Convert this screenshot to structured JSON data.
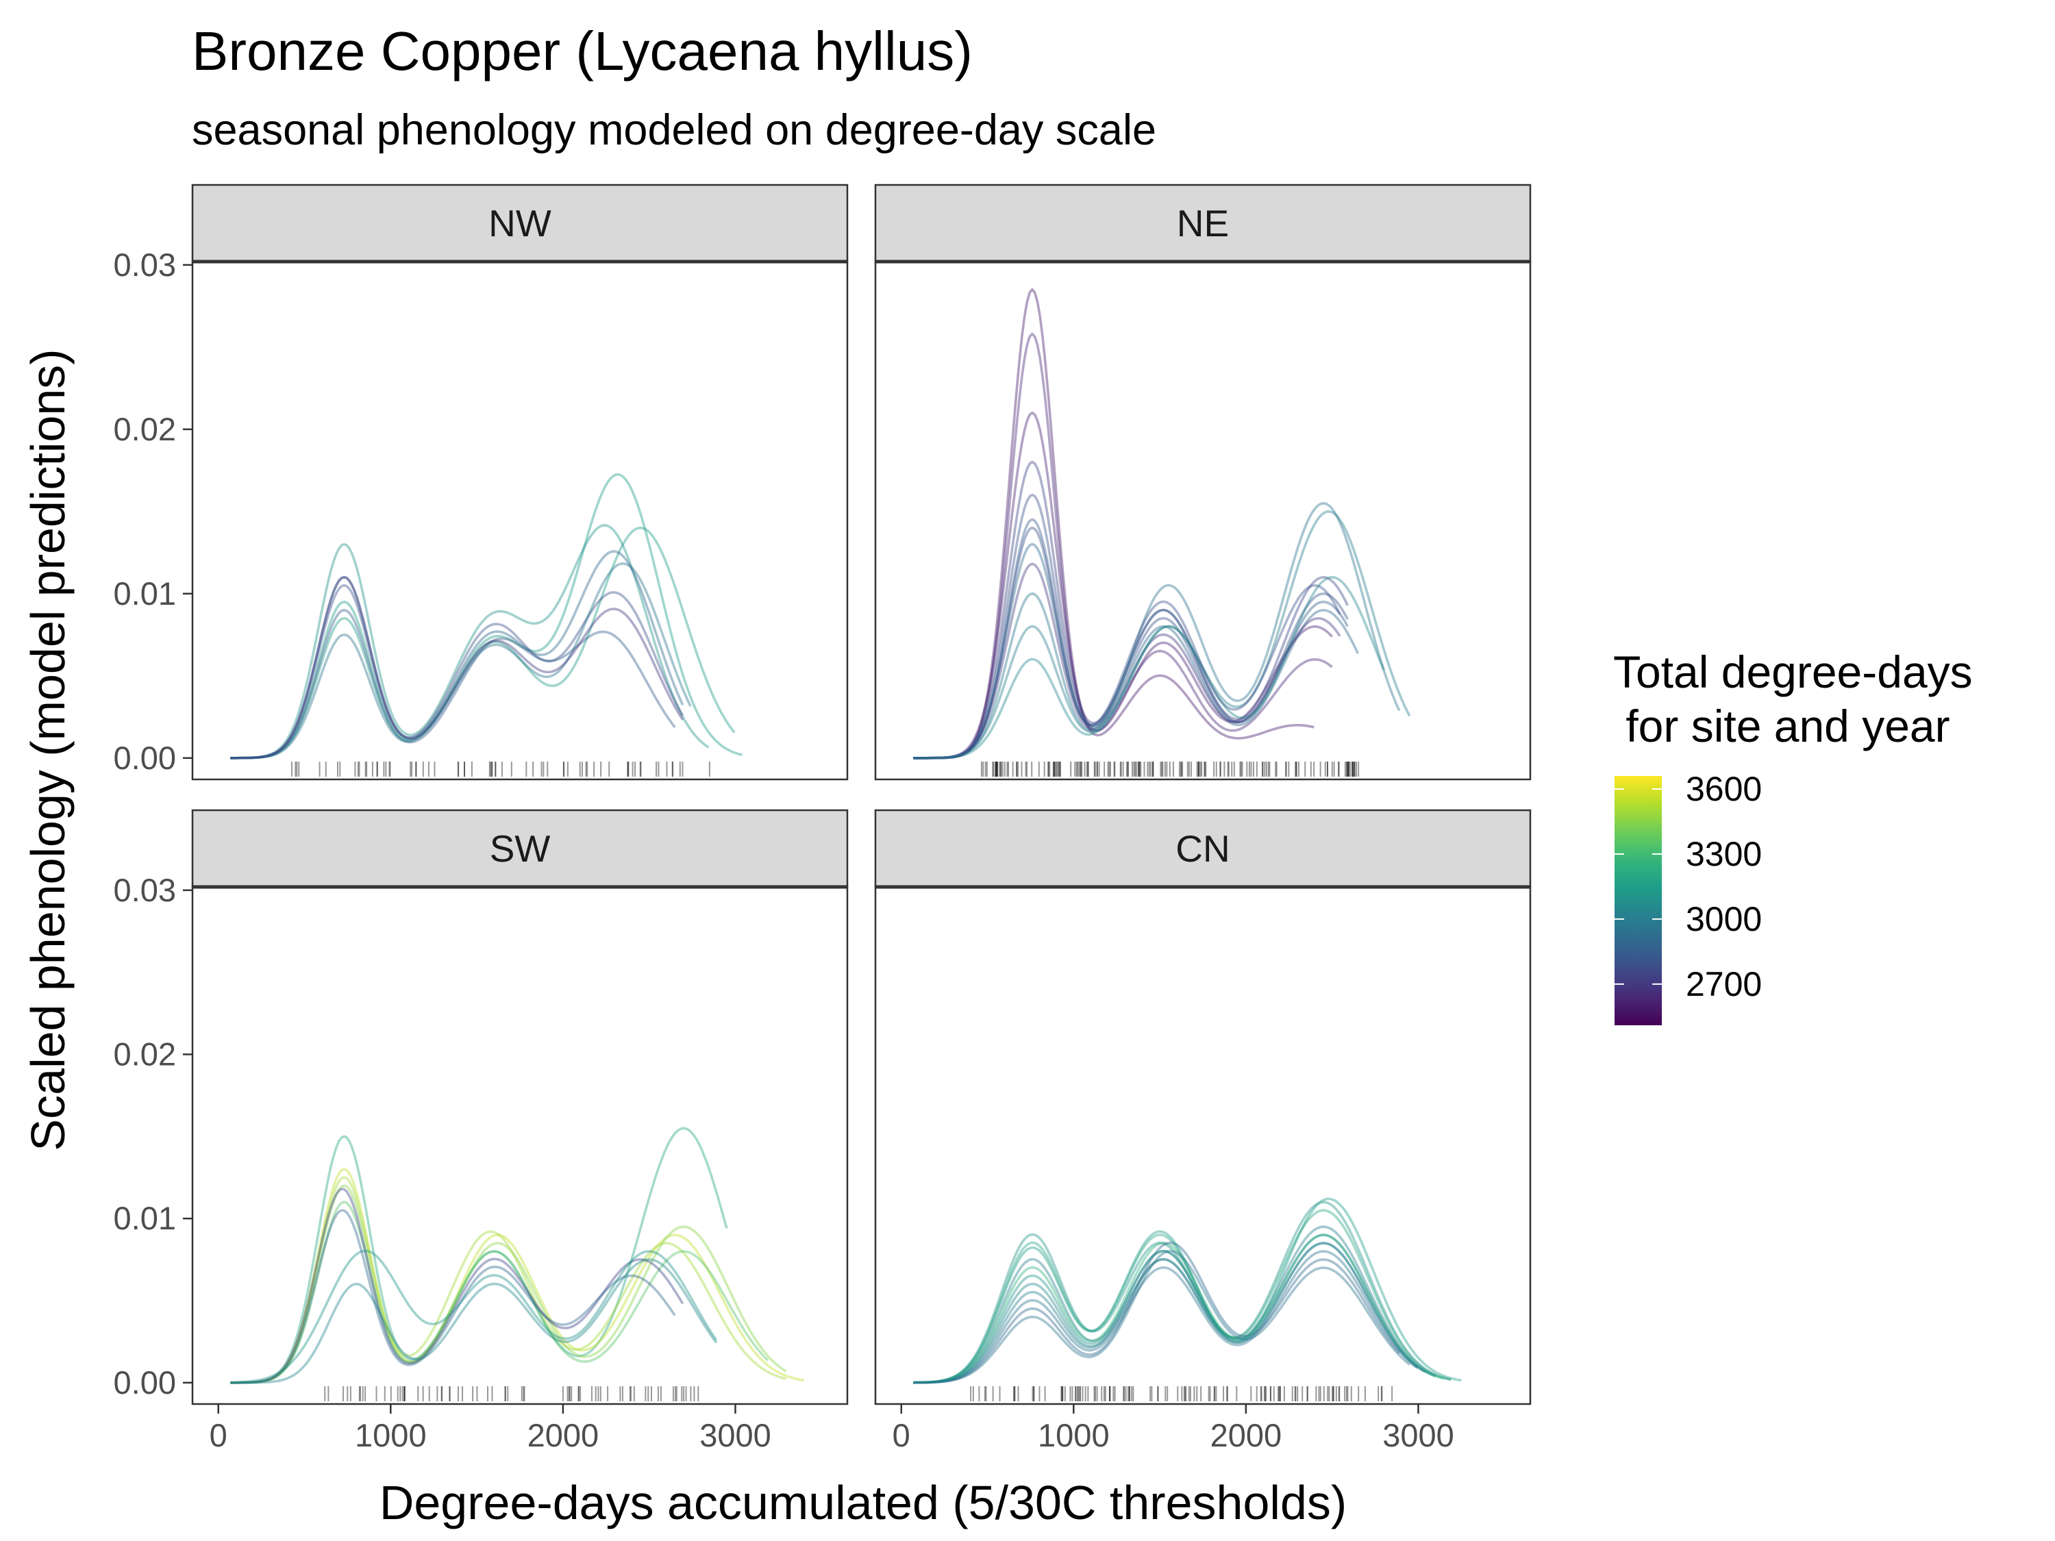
{
  "chart_data": {
    "type": "line",
    "title": "Bronze Copper (Lycaena hyllus)",
    "subtitle": "seasonal phenology modeled on degree-day scale",
    "xlabel": "Degree-days accumulated (5/30C thresholds)",
    "ylabel": "Scaled phenology (model predictions)",
    "xlim": [
      -150,
      3650
    ],
    "ylim": [
      -0.0013,
      0.0302
    ],
    "x_ticks": [
      0,
      1000,
      2000,
      3000
    ],
    "x_tick_labels": [
      "0",
      "1000",
      "2000",
      "3000"
    ],
    "y_ticks": [
      0,
      0.01,
      0.02,
      0.03
    ],
    "y_tick_labels": [
      "0.00",
      "0.01",
      "0.02",
      "0.03"
    ],
    "grid": false,
    "legend": {
      "title_lines": [
        "Total degree-days",
        " for site and year"
      ],
      "position": "right",
      "colormap": "viridis",
      "range": [
        2510,
        3660
      ],
      "ticks": [
        2700,
        3000,
        3300,
        3600
      ],
      "tick_labels": [
        "2700",
        "3000",
        "3300",
        "3600"
      ]
    },
    "panels": [
      {
        "label": "NW",
        "rug_range": [
          390,
          2900
        ],
        "rug_count": 70,
        "series": [
          {
            "color_value": 3150,
            "x_end": 3050,
            "peaks": [
              [
                730,
                0.0095,
                150
              ],
              [
                1600,
                0.0072,
                230
              ],
              [
                2320,
                0.0172,
                240
              ]
            ]
          },
          {
            "color_value": 3150,
            "x_end": 3000,
            "peaks": [
              [
                730,
                0.0085,
                150
              ],
              [
                1600,
                0.007,
                230
              ],
              [
                2450,
                0.014,
                260
              ]
            ]
          },
          {
            "color_value": 3100,
            "x_end": 2850,
            "peaks": [
              [
                730,
                0.013,
                150
              ],
              [
                1600,
                0.0085,
                230
              ],
              [
                2250,
                0.014,
                240
              ]
            ]
          },
          {
            "color_value": 2900,
            "x_end": 2700,
            "peaks": [
              [
                730,
                0.011,
                150
              ],
              [
                1600,
                0.0075,
                230
              ],
              [
                2300,
                0.0125,
                240
              ]
            ]
          },
          {
            "color_value": 2800,
            "x_end": 2700,
            "peaks": [
              [
                730,
                0.0105,
                150
              ],
              [
                1600,
                0.008,
                230
              ],
              [
                2300,
                0.01,
                240
              ]
            ]
          },
          {
            "color_value": 2850,
            "x_end": 2650,
            "peaks": [
              [
                730,
                0.009,
                150
              ],
              [
                1620,
                0.007,
                230
              ],
              [
                2250,
                0.0075,
                240
              ]
            ]
          },
          {
            "color_value": 2950,
            "x_end": 2750,
            "peaks": [
              [
                730,
                0.0075,
                150
              ],
              [
                1600,
                0.0068,
                230
              ],
              [
                2350,
                0.0118,
                240
              ]
            ]
          },
          {
            "color_value": 2700,
            "x_end": 2700,
            "peaks": [
              [
                730,
                0.011,
                150
              ],
              [
                1600,
                0.007,
                230
              ],
              [
                2300,
                0.009,
                240
              ]
            ]
          }
        ]
      },
      {
        "label": "NE",
        "rug_range": [
          460,
          2700
        ],
        "rug_count": 170,
        "series": [
          {
            "color_value": 2600,
            "x_end": 2400,
            "peaks": [
              [
                760,
                0.0285,
                130
              ],
              [
                1500,
                0.005,
                200
              ],
              [
                2300,
                0.002,
                260
              ]
            ]
          },
          {
            "color_value": 2650,
            "x_end": 2500,
            "peaks": [
              [
                760,
                0.0258,
                130
              ],
              [
                1500,
                0.0065,
                200
              ],
              [
                2400,
                0.006,
                250
              ]
            ]
          },
          {
            "color_value": 2620,
            "x_end": 2500,
            "peaks": [
              [
                760,
                0.021,
                140
              ],
              [
                1520,
                0.007,
                200
              ],
              [
                2400,
                0.008,
                250
              ]
            ]
          },
          {
            "color_value": 2750,
            "x_end": 2600,
            "peaks": [
              [
                760,
                0.018,
                140
              ],
              [
                1520,
                0.009,
                210
              ],
              [
                2450,
                0.011,
                240
              ]
            ]
          },
          {
            "color_value": 2800,
            "x_end": 2600,
            "peaks": [
              [
                760,
                0.016,
                140
              ],
              [
                1520,
                0.0085,
                210
              ],
              [
                2450,
                0.01,
                240
              ]
            ]
          },
          {
            "color_value": 2850,
            "x_end": 2600,
            "peaks": [
              [
                760,
                0.0145,
                140
              ],
              [
                1520,
                0.009,
                210
              ],
              [
                2450,
                0.0095,
                240
              ]
            ]
          },
          {
            "color_value": 2900,
            "x_end": 2650,
            "peaks": [
              [
                760,
                0.013,
                145
              ],
              [
                1520,
                0.008,
                210
              ],
              [
                2450,
                0.009,
                240
              ]
            ]
          },
          {
            "color_value": 2700,
            "x_end": 2550,
            "peaks": [
              [
                760,
                0.0118,
                145
              ],
              [
                1520,
                0.0075,
                210
              ],
              [
                2420,
                0.0085,
                240
              ]
            ]
          },
          {
            "color_value": 2950,
            "x_end": 2900,
            "peaks": [
              [
                760,
                0.01,
                145
              ],
              [
                1550,
                0.0105,
                210
              ],
              [
                2450,
                0.0155,
                240
              ]
            ]
          },
          {
            "color_value": 3000,
            "x_end": 2950,
            "peaks": [
              [
                760,
                0.008,
                150
              ],
              [
                1550,
                0.008,
                220
              ],
              [
                2480,
                0.015,
                250
              ]
            ]
          },
          {
            "color_value": 3050,
            "x_end": 2800,
            "peaks": [
              [
                760,
                0.006,
                150
              ],
              [
                1550,
                0.008,
                220
              ],
              [
                2500,
                0.011,
                250
              ]
            ]
          },
          {
            "color_value": 2800,
            "x_end": 2550,
            "peaks": [
              [
                760,
                0.014,
                140
              ],
              [
                1520,
                0.0095,
                210
              ],
              [
                2400,
                0.0105,
                240
              ]
            ]
          }
        ]
      },
      {
        "label": "SW",
        "rug_range": [
          600,
          2840
        ],
        "rug_count": 70,
        "series": [
          {
            "color_value": 3200,
            "x_end": 2950,
            "peaks": [
              [
                730,
                0.015,
                150
              ],
              [
                1600,
                0.008,
                230
              ],
              [
                2700,
                0.0155,
                250
              ]
            ]
          },
          {
            "color_value": 3550,
            "x_end": 3400,
            "peaks": [
              [
                730,
                0.013,
                150
              ],
              [
                1620,
                0.009,
                230
              ],
              [
                2650,
                0.009,
                260
              ]
            ]
          },
          {
            "color_value": 3450,
            "x_end": 3300,
            "peaks": [
              [
                730,
                0.012,
                150
              ],
              [
                1620,
                0.0085,
                230
              ],
              [
                2700,
                0.0095,
                260
              ]
            ]
          },
          {
            "color_value": 3500,
            "x_end": 3300,
            "peaks": [
              [
                730,
                0.0125,
                150
              ],
              [
                1580,
                0.0092,
                230
              ],
              [
                2600,
                0.0085,
                260
              ]
            ]
          },
          {
            "color_value": 3350,
            "x_end": 3200,
            "peaks": [
              [
                730,
                0.011,
                150
              ],
              [
                1600,
                0.008,
                230
              ],
              [
                2700,
                0.008,
                260
              ]
            ]
          },
          {
            "color_value": 2750,
            "x_end": 2700,
            "peaks": [
              [
                720,
                0.0118,
                150
              ],
              [
                1600,
                0.0075,
                230
              ],
              [
                2450,
                0.0075,
                260
              ]
            ]
          },
          {
            "color_value": 2900,
            "x_end": 2650,
            "peaks": [
              [
                720,
                0.0105,
                150
              ],
              [
                1600,
                0.007,
                230
              ],
              [
                2400,
                0.0065,
                260
              ]
            ]
          },
          {
            "color_value": 3100,
            "x_end": 2900,
            "peaks": [
              [
                850,
                0.008,
                220
              ],
              [
                1600,
                0.0065,
                230
              ],
              [
                2500,
                0.008,
                260
              ]
            ]
          },
          {
            "color_value": 3050,
            "x_end": 2900,
            "peaks": [
              [
                800,
                0.006,
                160
              ],
              [
                1600,
                0.006,
                230
              ],
              [
                2500,
                0.0075,
                260
              ]
            ]
          }
        ]
      },
      {
        "label": "CN",
        "rug_range": [
          400,
          2900
        ],
        "rug_count": 120,
        "series": [
          {
            "color_value": 3100,
            "x_end": 3200,
            "peaks": [
              [
                760,
                0.009,
                180
              ],
              [
                1500,
                0.0085,
                220
              ],
              [
                2450,
                0.011,
                260
              ]
            ]
          },
          {
            "color_value": 3200,
            "x_end": 3200,
            "peaks": [
              [
                760,
                0.0085,
                180
              ],
              [
                1500,
                0.009,
                220
              ],
              [
                2450,
                0.0105,
                260
              ]
            ]
          },
          {
            "color_value": 3000,
            "x_end": 3100,
            "peaks": [
              [
                760,
                0.0075,
                180
              ],
              [
                1520,
                0.008,
                220
              ],
              [
                2450,
                0.0095,
                260
              ]
            ]
          },
          {
            "color_value": 3250,
            "x_end": 3150,
            "peaks": [
              [
                760,
                0.007,
                180
              ],
              [
                1520,
                0.0085,
                220
              ],
              [
                2450,
                0.009,
                260
              ]
            ]
          },
          {
            "color_value": 3050,
            "x_end": 3000,
            "peaks": [
              [
                760,
                0.006,
                180
              ],
              [
                1520,
                0.0075,
                220
              ],
              [
                2450,
                0.0085,
                260
              ]
            ]
          },
          {
            "color_value": 2950,
            "x_end": 3000,
            "peaks": [
              [
                760,
                0.005,
                180
              ],
              [
                1520,
                0.007,
                220
              ],
              [
                2450,
                0.008,
                260
              ]
            ]
          },
          {
            "color_value": 2900,
            "x_end": 2900,
            "peaks": [
              [
                760,
                0.0045,
                180
              ],
              [
                1560,
                0.0085,
                220
              ],
              [
                2450,
                0.0075,
                260
              ]
            ]
          },
          {
            "color_value": 3150,
            "x_end": 3250,
            "peaks": [
              [
                760,
                0.0082,
                180
              ],
              [
                1500,
                0.0092,
                220
              ],
              [
                2480,
                0.0112,
                260
              ]
            ]
          },
          {
            "color_value": 3100,
            "x_end": 3100,
            "peaks": [
              [
                760,
                0.0065,
                180
              ],
              [
                1520,
                0.008,
                220
              ],
              [
                2450,
                0.009,
                260
              ]
            ]
          },
          {
            "color_value": 3000,
            "x_end": 3050,
            "peaks": [
              [
                760,
                0.0055,
                180
              ],
              [
                1520,
                0.0075,
                220
              ],
              [
                2450,
                0.0085,
                260
              ]
            ]
          },
          {
            "color_value": 2950,
            "x_end": 2950,
            "peaks": [
              [
                760,
                0.004,
                180
              ],
              [
                1560,
                0.008,
                220
              ],
              [
                2450,
                0.007,
                260
              ]
            ]
          }
        ]
      }
    ]
  }
}
